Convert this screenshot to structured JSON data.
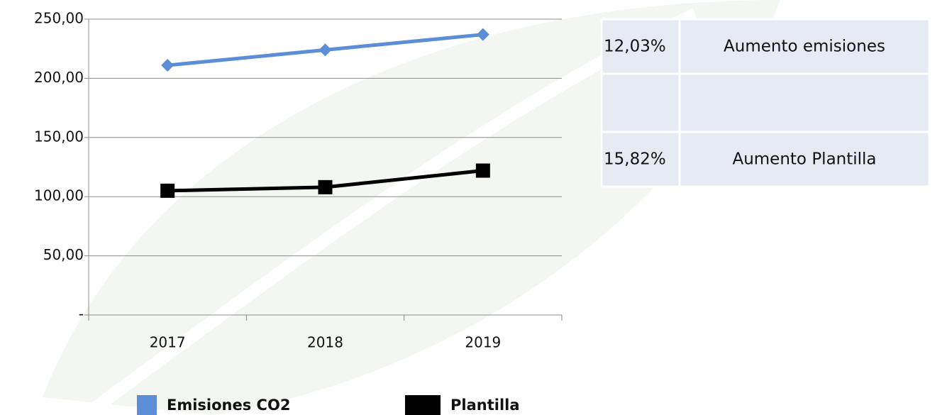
{
  "chart_data": {
    "type": "line",
    "categories": [
      "2017",
      "2018",
      "2019"
    ],
    "series": [
      {
        "name": "Emisiones CO2",
        "color": "#5b8ed6",
        "marker": "diamond",
        "values": [
          211,
          224,
          237
        ]
      },
      {
        "name": "Plantilla",
        "color": "#000000",
        "marker": "square",
        "values": [
          105,
          108,
          122
        ]
      }
    ],
    "ylim": [
      0,
      250
    ],
    "yticks": [
      {
        "value": 0,
        "label": "-"
      },
      {
        "value": 50,
        "label": "50,00"
      },
      {
        "value": 100,
        "label": "100,00"
      },
      {
        "value": 150,
        "label": "150,00"
      },
      {
        "value": 200,
        "label": "200,00"
      },
      {
        "value": 250,
        "label": "250,00"
      }
    ],
    "grid": true
  },
  "table": {
    "rows": [
      [
        "12,03%",
        "Aumento emisiones"
      ],
      [
        "15,82%",
        "Aumento Plantilla"
      ]
    ]
  }
}
